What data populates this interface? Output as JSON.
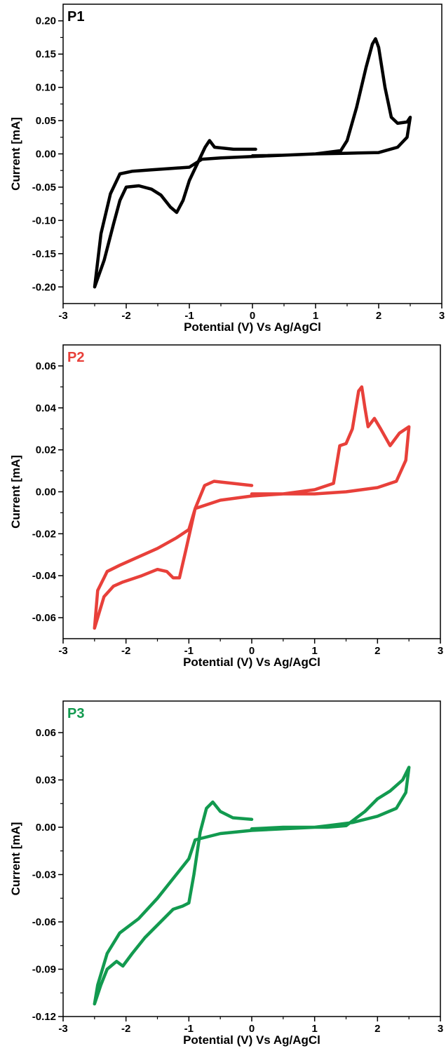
{
  "chart_data": [
    {
      "type": "line",
      "panel_label": "P1",
      "xlabel": "Potential (V) Vs Ag/AgCl",
      "ylabel": "Current [mA]",
      "xlim": [
        -3,
        3
      ],
      "ylim": [
        -0.225,
        0.225
      ],
      "xticks": [
        -3,
        -2,
        -1,
        0,
        1,
        2,
        3
      ],
      "xtick_labels": [
        "-3",
        "-2",
        "-1",
        "0",
        "1",
        "2",
        "3"
      ],
      "yticks": [
        -0.2,
        -0.15,
        -0.1,
        -0.05,
        0,
        0.05,
        0.1,
        0.15,
        0.2
      ],
      "ytick_labels": [
        "-0.20",
        "-0.15",
        "-0.10",
        "-0.05",
        "0.00",
        "0.05",
        "0.10",
        "0.15",
        "0.20"
      ],
      "color": "#000000",
      "series": [
        {
          "x": [
            0.05,
            -0.3,
            -0.6,
            -0.68,
            -0.75,
            -0.85,
            -1.0,
            -1.1,
            -1.2,
            -1.3,
            -1.45,
            -1.6,
            -1.8,
            -2.0,
            -2.1,
            -2.2,
            -2.35,
            -2.5,
            -2.4,
            -2.25,
            -2.1,
            -1.9,
            -1.6,
            -1.3,
            -1.0,
            -0.8,
            -0.5,
            0.0,
            0.5,
            1.0,
            1.4,
            1.5,
            1.65,
            1.8,
            1.9,
            1.95,
            2.0,
            2.1,
            2.2,
            2.3,
            2.45,
            2.5,
            2.45,
            2.3,
            2.0,
            1.5,
            1.0,
            0.5,
            0.0
          ],
          "y": [
            0.007,
            0.007,
            0.01,
            0.02,
            0.01,
            -0.01,
            -0.04,
            -0.07,
            -0.088,
            -0.08,
            -0.062,
            -0.053,
            -0.048,
            -0.05,
            -0.07,
            -0.105,
            -0.16,
            -0.2,
            -0.12,
            -0.06,
            -0.03,
            -0.026,
            -0.024,
            -0.022,
            -0.02,
            -0.008,
            -0.006,
            -0.004,
            -0.002,
            0.0,
            0.005,
            0.02,
            0.07,
            0.13,
            0.165,
            0.173,
            0.16,
            0.1,
            0.055,
            0.046,
            0.048,
            0.055,
            0.025,
            0.01,
            0.002,
            0.001,
            0.0,
            -0.002,
            -0.003
          ]
        }
      ]
    },
    {
      "type": "line",
      "panel_label": "P2",
      "xlabel": "Potential (V) Vs Ag/AgCl",
      "ylabel": "Current [mA]",
      "xlim": [
        -3,
        3
      ],
      "ylim": [
        -0.07,
        0.07
      ],
      "xticks": [
        -3,
        -2,
        -1,
        0,
        1,
        2,
        3
      ],
      "xtick_labels": [
        "-3",
        "-2",
        "-1",
        "0",
        "1",
        "2",
        "3"
      ],
      "yticks": [
        -0.06,
        -0.04,
        -0.02,
        0,
        0.02,
        0.04,
        0.06
      ],
      "ytick_labels": [
        "-0.06",
        "-0.04",
        "-0.02",
        "0.00",
        "0.02",
        "0.04",
        "0.06"
      ],
      "color": "#e8403a",
      "series": [
        {
          "x": [
            0.0,
            -0.3,
            -0.6,
            -0.75,
            -0.9,
            -1.05,
            -1.15,
            -1.25,
            -1.35,
            -1.5,
            -1.75,
            -2.05,
            -2.2,
            -2.35,
            -2.5,
            -2.45,
            -2.3,
            -2.1,
            -1.8,
            -1.5,
            -1.2,
            -1.0,
            -0.9,
            -0.5,
            0.0,
            0.5,
            1.0,
            1.3,
            1.4,
            1.5,
            1.6,
            1.7,
            1.75,
            1.8,
            1.85,
            1.95,
            2.05,
            2.2,
            2.35,
            2.5,
            2.45,
            2.3,
            2.0,
            1.5,
            1.0,
            0.5,
            0.0
          ],
          "y": [
            0.003,
            0.004,
            0.005,
            0.003,
            -0.008,
            -0.028,
            -0.041,
            -0.041,
            -0.038,
            -0.037,
            -0.04,
            -0.043,
            -0.045,
            -0.05,
            -0.065,
            -0.047,
            -0.038,
            -0.035,
            -0.031,
            -0.027,
            -0.022,
            -0.018,
            -0.008,
            -0.004,
            -0.002,
            -0.001,
            0.001,
            0.004,
            0.022,
            0.023,
            0.03,
            0.048,
            0.05,
            0.04,
            0.031,
            0.035,
            0.03,
            0.022,
            0.028,
            0.031,
            0.015,
            0.005,
            0.002,
            0.0,
            -0.001,
            -0.001,
            -0.001
          ]
        }
      ]
    },
    {
      "type": "line",
      "panel_label": "P3",
      "xlabel": "Potential (V) Vs Ag/AgCl",
      "ylabel": "Current [mA]",
      "xlim": [
        -3,
        3
      ],
      "ylim": [
        -0.12,
        0.08
      ],
      "xticks": [
        -3,
        -2,
        -1,
        0,
        1,
        2,
        3
      ],
      "xtick_labels": [
        "-3",
        "-2",
        "-1",
        "0",
        "1",
        "2",
        "3"
      ],
      "yticks": [
        -0.12,
        -0.09,
        -0.06,
        -0.03,
        0,
        0.03,
        0.06
      ],
      "ytick_labels": [
        "-0.12",
        "-0.09",
        "-0.06",
        "-0.03",
        "0.00",
        "0.03",
        "0.06"
      ],
      "color": "#129a4f",
      "series": [
        {
          "x": [
            0.0,
            -0.3,
            -0.5,
            -0.62,
            -0.72,
            -0.82,
            -0.92,
            -1.0,
            -1.1,
            -1.25,
            -1.45,
            -1.7,
            -1.9,
            -2.05,
            -2.15,
            -2.3,
            -2.4,
            -2.5,
            -2.45,
            -2.3,
            -2.1,
            -1.8,
            -1.5,
            -1.2,
            -1.0,
            -0.9,
            -0.5,
            0.0,
            0.5,
            1.0,
            1.2,
            1.5,
            1.8,
            2.0,
            2.2,
            2.4,
            2.5,
            2.45,
            2.3,
            2.0,
            1.6,
            1.2,
            1.0,
            0.5,
            0.0
          ],
          "y": [
            0.005,
            0.006,
            0.01,
            0.016,
            0.012,
            -0.003,
            -0.03,
            -0.048,
            -0.05,
            -0.052,
            -0.06,
            -0.07,
            -0.08,
            -0.088,
            -0.085,
            -0.09,
            -0.1,
            -0.112,
            -0.1,
            -0.08,
            -0.067,
            -0.058,
            -0.045,
            -0.03,
            -0.02,
            -0.008,
            -0.004,
            -0.002,
            -0.001,
            0.0,
            0.0,
            0.001,
            0.01,
            0.018,
            0.023,
            0.03,
            0.038,
            0.022,
            0.012,
            0.007,
            0.003,
            0.001,
            0.0,
            0.0,
            -0.001
          ]
        }
      ]
    }
  ]
}
